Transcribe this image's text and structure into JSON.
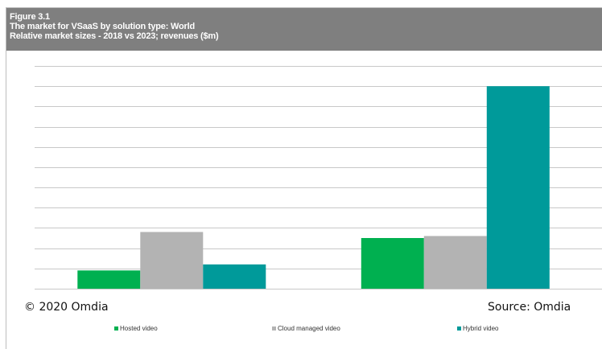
{
  "figure": {
    "number": "Figure 3.1",
    "title": "The market for VSaaS by solution type: World",
    "subtitle": "Relative market sizes - 2018 vs 2023; revenues ($m)"
  },
  "footer": {
    "copyright": "© 2020 Omdia",
    "source": "Source:  Omdia"
  },
  "colors": {
    "hosted": "#00b050",
    "cloud": "#b3b3b3",
    "hybrid": "#009a9a",
    "header_bg": "#7f7f7f",
    "grid": "#c8c8c8"
  },
  "chart_data": {
    "type": "bar",
    "title": "The market for VSaaS by solution type: World",
    "subtitle": "Relative market sizes - 2018 vs 2023; revenues ($m)",
    "categories": [
      "",
      ""
    ],
    "series": [
      {
        "name": "Hosted video",
        "color": "#00b050",
        "values": [
          0.9,
          2.5
        ]
      },
      {
        "name": "Cloud managed video",
        "color": "#b3b3b3",
        "values": [
          2.8,
          2.6
        ]
      },
      {
        "name": "Hybrid video",
        "color": "#009a9a",
        "values": [
          1.2,
          10.0
        ]
      }
    ],
    "ylim": [
      0,
      11
    ],
    "y_gridlines": [
      0,
      1,
      2,
      3,
      4,
      5,
      6,
      7,
      8,
      9,
      10,
      11
    ],
    "y_tick_labels": "none",
    "grid": true,
    "legend_position": "bottom"
  }
}
